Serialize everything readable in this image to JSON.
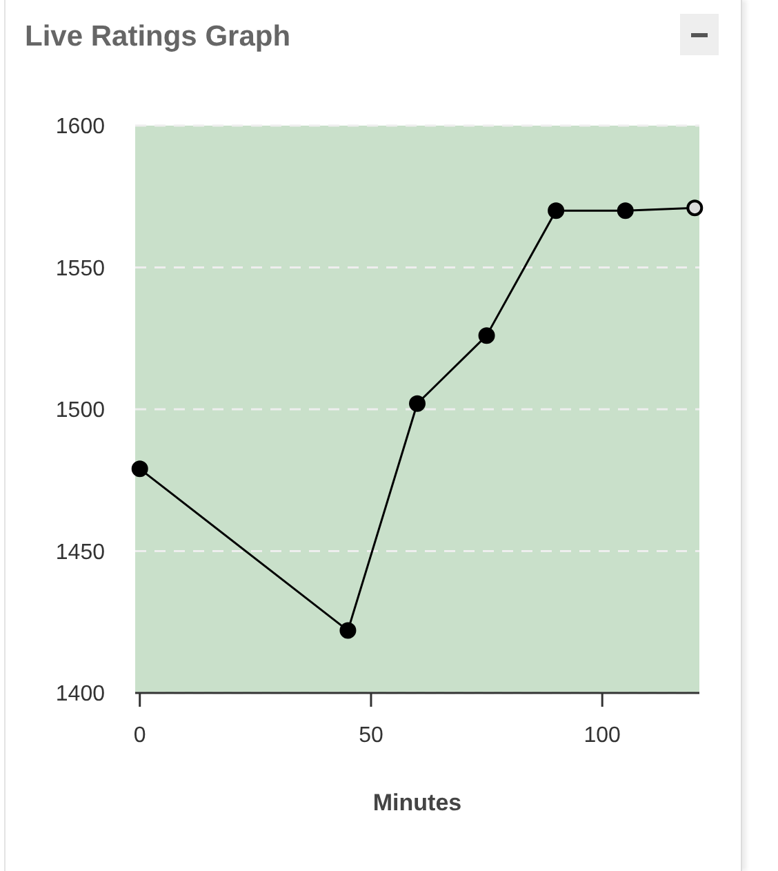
{
  "chart_data": {
    "type": "line",
    "title": "Live Ratings Graph",
    "xlabel": "Minutes",
    "x": [
      0,
      45,
      60,
      75,
      90,
      105,
      120
    ],
    "series": [
      {
        "color": "#000000",
        "colors": [
          "#000000",
          "#000000",
          "#000000",
          "#000000",
          "#000000",
          "#000000",
          "#dddddd"
        ],
        "values": [
          1479,
          1422,
          1502,
          1526,
          1570,
          1570,
          1571
        ]
      }
    ],
    "xlim": [
      -1,
      121
    ],
    "xticks": [
      0,
      50,
      100
    ],
    "ylim": [
      1400,
      1600
    ],
    "yticks": [
      1400,
      1450,
      1500,
      1550,
      1600
    ],
    "grid": "y",
    "bands": [
      {
        "axis": "y",
        "from": 1400,
        "to": 1600,
        "color": "#c9e0ca"
      }
    ],
    "marker": "circle",
    "line_style": "solid"
  }
}
